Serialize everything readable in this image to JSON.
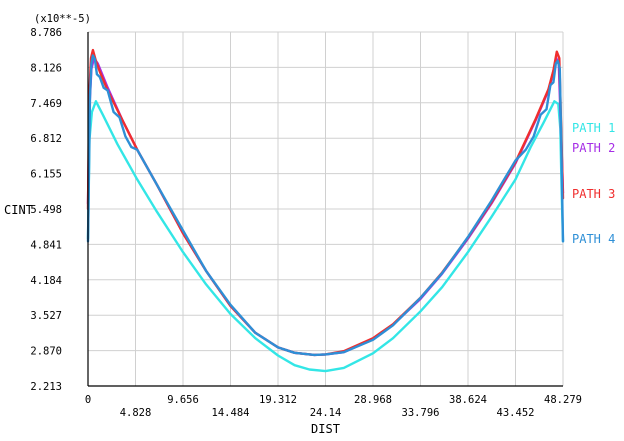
{
  "chart_data": {
    "type": "line",
    "title": "",
    "xlabel": "DIST",
    "ylabel": "CINT",
    "y_multiplier": "(x10**-5)",
    "xlim": [
      0,
      48.279
    ],
    "ylim": [
      2.213,
      8.786
    ],
    "xticks": [
      "0",
      "4.828",
      "9.656",
      "14.484",
      "19.312",
      "24.14",
      "28.968",
      "33.796",
      "38.624",
      "43.452",
      "48.279"
    ],
    "yticks": [
      "2.213",
      "2.870",
      "3.527",
      "4.184",
      "4.841",
      "5.498",
      "6.155",
      "6.812",
      "7.469",
      "8.126",
      "8.786"
    ],
    "grid": true,
    "legend_position": "right",
    "series": [
      {
        "name": "PATH 1",
        "color": "#33e6e6",
        "x": [
          0,
          0.15,
          0.4,
          0.8,
          1.5,
          3,
          5,
          7,
          9.656,
          12,
          14.484,
          17,
          19.312,
          21,
          22.5,
          24.14,
          26,
          28.968,
          31,
          33.796,
          36,
          38.624,
          41,
          43.452,
          45,
          46.3,
          47.4,
          47.8,
          48.0,
          48.15,
          48.279
        ],
        "y": [
          4.95,
          6.8,
          7.3,
          7.5,
          7.25,
          6.7,
          6.05,
          5.45,
          4.7,
          4.1,
          3.55,
          3.1,
          2.78,
          2.6,
          2.52,
          2.49,
          2.55,
          2.82,
          3.1,
          3.6,
          4.05,
          4.7,
          5.35,
          6.05,
          6.65,
          7.1,
          7.5,
          7.45,
          7.0,
          5.8,
          4.9
        ]
      },
      {
        "name": "PATH 2",
        "color": "#a62ee6",
        "x": [
          0,
          0.15,
          0.35,
          0.6,
          1.0,
          2,
          3.5,
          5,
          7,
          9.656,
          12,
          14.484,
          17,
          19.312,
          21,
          23,
          24.14,
          26,
          28.968,
          31,
          33.796,
          36,
          38.624,
          41,
          43.452,
          45.5,
          46.8,
          47.3,
          47.6,
          47.85,
          48.279
        ],
        "y": [
          5.6,
          7.4,
          8.1,
          8.3,
          8.2,
          7.75,
          7.15,
          6.6,
          5.95,
          5.05,
          4.35,
          3.7,
          3.2,
          2.93,
          2.83,
          2.79,
          2.8,
          2.84,
          3.08,
          3.35,
          3.83,
          4.3,
          4.95,
          5.6,
          6.35,
          7.15,
          7.7,
          8.05,
          8.3,
          8.2,
          5.8
        ]
      },
      {
        "name": "PATH 3",
        "color": "#f02e2e",
        "x": [
          0,
          0.12,
          0.3,
          0.5,
          0.8,
          1.2,
          2,
          3.5,
          5,
          7,
          9.656,
          12,
          14.484,
          17,
          19.312,
          21,
          23,
          24.14,
          26,
          28.968,
          31,
          33.796,
          36,
          38.624,
          41,
          43.452,
          45.5,
          46.8,
          47.3,
          47.65,
          47.9,
          48.279
        ],
        "y": [
          5.5,
          7.6,
          8.3,
          8.45,
          8.25,
          8.05,
          7.7,
          7.15,
          6.6,
          5.95,
          5.05,
          4.35,
          3.7,
          3.2,
          2.93,
          2.83,
          2.79,
          2.8,
          2.86,
          3.1,
          3.36,
          3.85,
          4.32,
          4.97,
          5.62,
          6.37,
          7.17,
          7.72,
          8.07,
          8.42,
          8.3,
          5.7
        ]
      },
      {
        "name": "PATH 4",
        "color": "#2e8fd6",
        "x": [
          0,
          0.1,
          0.2,
          0.35,
          0.5,
          0.7,
          0.9,
          1.2,
          1.6,
          2.0,
          2.6,
          3.2,
          3.8,
          4.4,
          5,
          7,
          9.656,
          12,
          14.484,
          17,
          19.312,
          21,
          23,
          24.14,
          26,
          28.968,
          31,
          33.796,
          36,
          38.624,
          41,
          43.452,
          44.5,
          45.3,
          46,
          46.6,
          47.0,
          47.3,
          47.55,
          47.75,
          47.95,
          48.1,
          48.279
        ],
        "y": [
          4.9,
          6.3,
          7.6,
          8.2,
          8.35,
          8.28,
          8.0,
          7.95,
          7.75,
          7.7,
          7.3,
          7.2,
          6.85,
          6.65,
          6.6,
          5.95,
          5.1,
          4.35,
          3.72,
          3.2,
          2.93,
          2.83,
          2.79,
          2.8,
          2.84,
          3.07,
          3.34,
          3.85,
          4.31,
          4.98,
          5.65,
          6.4,
          6.6,
          6.85,
          7.25,
          7.35,
          7.8,
          7.85,
          8.2,
          8.25,
          8.1,
          6.8,
          4.9
        ]
      }
    ]
  }
}
